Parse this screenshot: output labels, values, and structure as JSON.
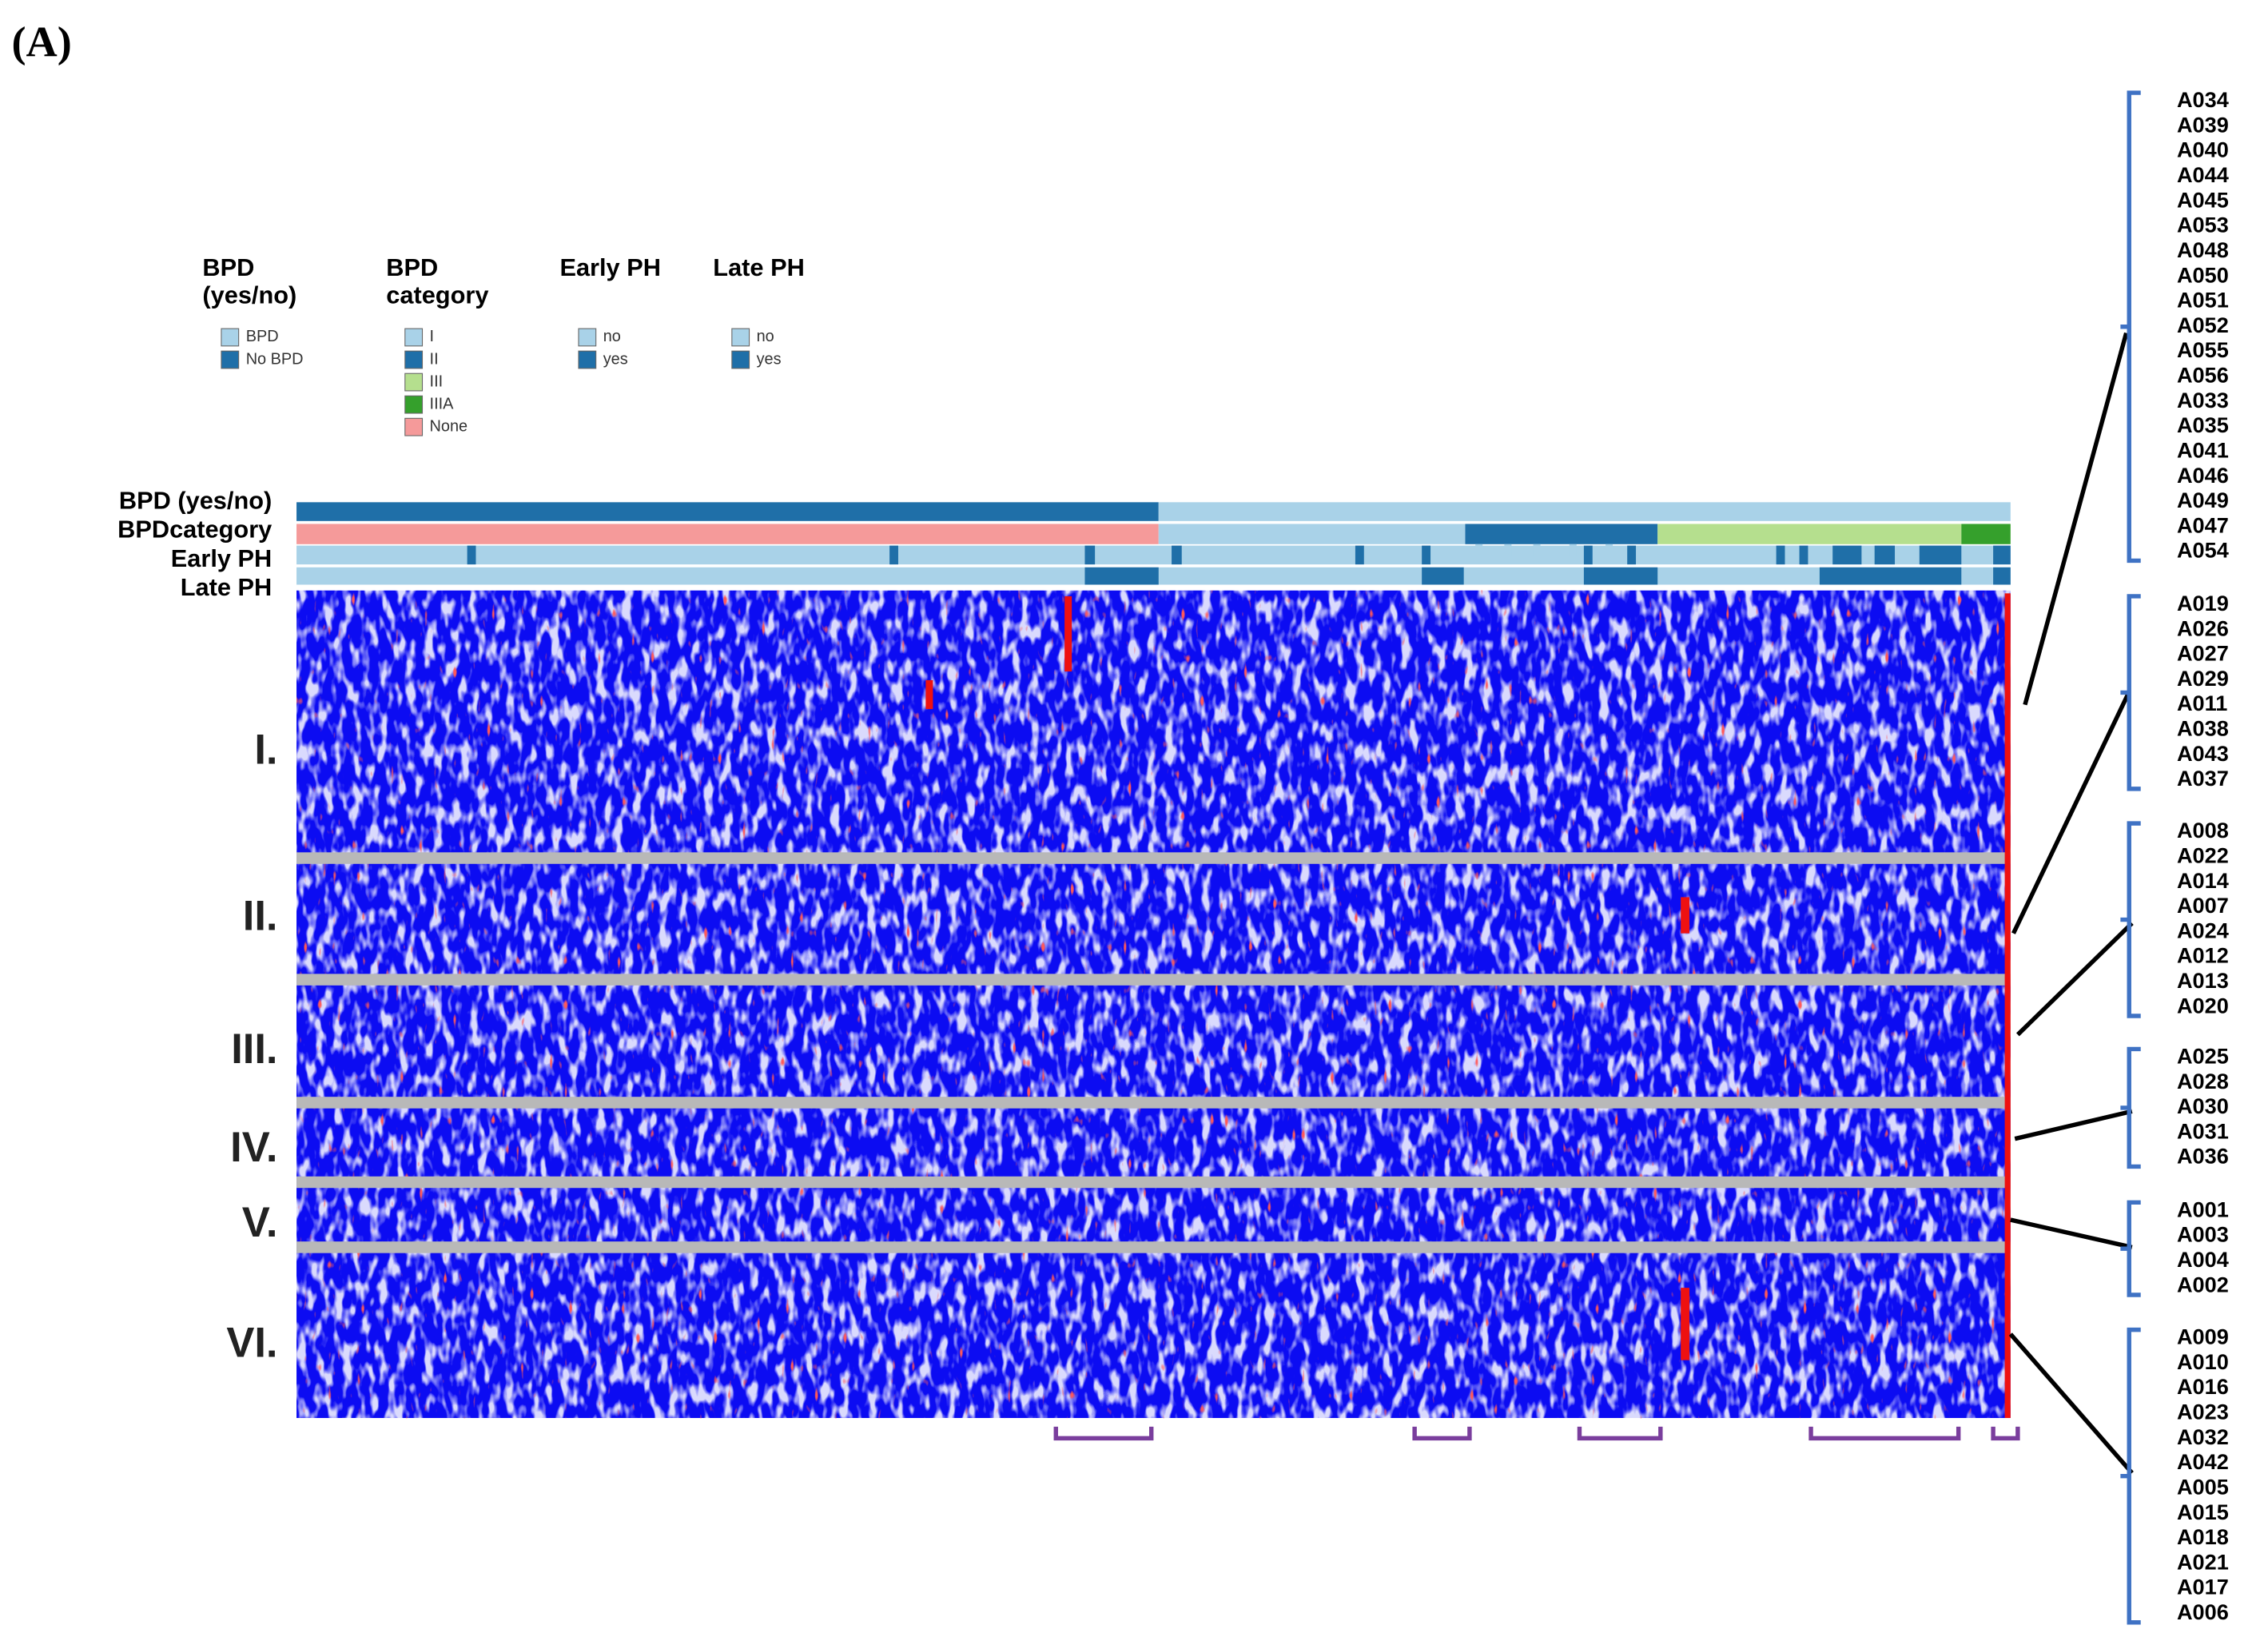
{
  "panel_label": "(A)",
  "legend": [
    {
      "title": [
        "BPD",
        "(yes/no)"
      ],
      "items": [
        {
          "label": "BPD",
          "color": "#a9d2e8"
        },
        {
          "label": "No BPD",
          "color": "#1f6fa8"
        }
      ]
    },
    {
      "title": [
        "BPD",
        "category"
      ],
      "items": [
        {
          "label": "I",
          "color": "#a9d2e8"
        },
        {
          "label": "II",
          "color": "#1f6fa8"
        },
        {
          "label": "III",
          "color": "#b5df8e"
        },
        {
          "label": "IIIA",
          "color": "#35a02c"
        },
        {
          "label": "None",
          "color": "#f59a9a"
        }
      ]
    },
    {
      "title": [
        "Early PH"
      ],
      "items": [
        {
          "label": "no",
          "color": "#a9d2e8"
        },
        {
          "label": "yes",
          "color": "#1f6fa8"
        }
      ]
    },
    {
      "title": [
        "Late PH"
      ],
      "items": [
        {
          "label": "no",
          "color": "#a9d2e8"
        },
        {
          "label": "yes",
          "color": "#1f6fa8"
        }
      ]
    }
  ],
  "tracks": [
    "BPD (yes/no)",
    "BPDcategory",
    "Early PH",
    "Late PH"
  ],
  "clusters": [
    {
      "label": "I.",
      "ids": [
        "A034",
        "A039",
        "A040",
        "A044",
        "A045",
        "A053",
        "A048",
        "A050",
        "A051",
        "A052",
        "A055",
        "A056",
        "A033",
        "A035",
        "A041",
        "A046",
        "A049",
        "A047",
        "A054"
      ]
    },
    {
      "label": "II.",
      "ids": [
        "A019",
        "A026",
        "A027",
        "A029",
        "A011",
        "A038",
        "A043",
        "A037"
      ]
    },
    {
      "label": "III.",
      "ids": [
        "A008",
        "A022",
        "A014",
        "A007",
        "A024",
        "A012",
        "A013",
        "A020"
      ]
    },
    {
      "label": "IV.",
      "ids": [
        "A025",
        "A028",
        "A030",
        "A031",
        "A036"
      ]
    },
    {
      "label": "V.",
      "ids": [
        "A001",
        "A003",
        "A004",
        "A002"
      ]
    },
    {
      "label": "VI.",
      "ids": [
        "A009",
        "A010",
        "A016",
        "A023",
        "A032",
        "A042",
        "A005",
        "A015",
        "A018",
        "A021",
        "A017",
        "A006"
      ]
    }
  ]
}
